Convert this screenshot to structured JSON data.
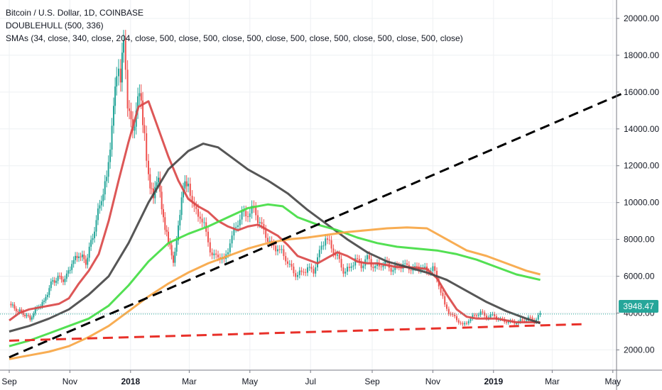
{
  "legend": {
    "title": "Bitcoin / U.S. Dollar, 1D, COINBASE",
    "indicator1": "DOUBLEHULL (500, 336)",
    "indicator2": "SMAs (34, close, 340, close, 204, close, 500, close, 500, close, 500, close, 500, close, 500, close, 500, close, 500, close)"
  },
  "last_price_label": "3948.47",
  "colors": {
    "up_candle": "#26a69a",
    "down_candle": "#ef5350",
    "sma_red": "#d94545",
    "sma_dark": "#444444",
    "sma_green": "#40dd40",
    "sma_orange": "#f7a440",
    "trend_black": "#000000",
    "trend_red": "#e8312a",
    "price_tag": "#26a69a"
  },
  "chart_data": {
    "type": "line",
    "x_range_days": [
      0,
      620
    ],
    "ylim": [
      900,
      21000
    ],
    "y_ticks": [
      2000,
      4000,
      6000,
      8000,
      10000,
      12000,
      14000,
      16000,
      18000,
      20000
    ],
    "y_tick_labels": [
      "2000.00",
      "4000.00",
      "6000.00",
      "8000.00",
      "10000.00",
      "12000.00",
      "14000.00",
      "16000.00",
      "18000.00",
      "20000.00"
    ],
    "x_ticks": [
      {
        "label": "Sep",
        "day": 0,
        "bold": false
      },
      {
        "label": "Nov",
        "day": 61,
        "bold": false
      },
      {
        "label": "2018",
        "day": 122,
        "bold": true
      },
      {
        "label": "Mar",
        "day": 181,
        "bold": false
      },
      {
        "label": "May",
        "day": 242,
        "bold": false
      },
      {
        "label": "Jul",
        "day": 303,
        "bold": false
      },
      {
        "label": "Sep",
        "day": 365,
        "bold": false
      },
      {
        "label": "Nov",
        "day": 426,
        "bold": false
      },
      {
        "label": "2019",
        "day": 487,
        "bold": true
      },
      {
        "label": "Mar",
        "day": 546,
        "bold": false
      },
      {
        "label": "May",
        "day": 607,
        "bold": false
      }
    ],
    "price": [
      [
        0,
        4500
      ],
      [
        7,
        4200
      ],
      [
        14,
        4000
      ],
      [
        21,
        3700
      ],
      [
        28,
        4300
      ],
      [
        35,
        4600
      ],
      [
        42,
        5600
      ],
      [
        49,
        5900
      ],
      [
        56,
        5800
      ],
      [
        63,
        6700
      ],
      [
        70,
        7200
      ],
      [
        77,
        6800
      ],
      [
        84,
        8200
      ],
      [
        91,
        9900
      ],
      [
        98,
        11300
      ],
      [
        105,
        15000
      ],
      [
        108,
        17200
      ],
      [
        112,
        16500
      ],
      [
        115,
        19000
      ],
      [
        119,
        14800
      ],
      [
        126,
        14100
      ],
      [
        131,
        16200
      ],
      [
        136,
        13800
      ],
      [
        140,
        11400
      ],
      [
        145,
        10100
      ],
      [
        150,
        11600
      ],
      [
        155,
        9000
      ],
      [
        160,
        7800
      ],
      [
        165,
        6900
      ],
      [
        170,
        8600
      ],
      [
        175,
        10800
      ],
      [
        180,
        11200
      ],
      [
        186,
        9500
      ],
      [
        192,
        9300
      ],
      [
        198,
        8400
      ],
      [
        204,
        7000
      ],
      [
        210,
        7200
      ],
      [
        216,
        6800
      ],
      [
        222,
        7800
      ],
      [
        228,
        8800
      ],
      [
        234,
        9300
      ],
      [
        240,
        9400
      ],
      [
        246,
        9700
      ],
      [
        252,
        8800
      ],
      [
        258,
        8300
      ],
      [
        264,
        7600
      ],
      [
        270,
        7500
      ],
      [
        276,
        7200
      ],
      [
        282,
        6500
      ],
      [
        288,
        6100
      ],
      [
        294,
        6200
      ],
      [
        300,
        6400
      ],
      [
        306,
        6300
      ],
      [
        312,
        7300
      ],
      [
        318,
        8100
      ],
      [
        324,
        7600
      ],
      [
        330,
        7000
      ],
      [
        336,
        6300
      ],
      [
        342,
        6400
      ],
      [
        348,
        6900
      ],
      [
        354,
        6600
      ],
      [
        360,
        7000
      ],
      [
        366,
        6500
      ],
      [
        372,
        6600
      ],
      [
        378,
        6700
      ],
      [
        384,
        6400
      ],
      [
        390,
        6500
      ],
      [
        396,
        6600
      ],
      [
        402,
        6500
      ],
      [
        408,
        6400
      ],
      [
        414,
        6500
      ],
      [
        420,
        6300
      ],
      [
        426,
        6400
      ],
      [
        432,
        5600
      ],
      [
        438,
        4400
      ],
      [
        444,
        3900
      ],
      [
        450,
        3700
      ],
      [
        456,
        3300
      ],
      [
        462,
        3600
      ],
      [
        468,
        3900
      ],
      [
        474,
        4000
      ],
      [
        480,
        3800
      ],
      [
        486,
        3900
      ],
      [
        492,
        3650
      ],
      [
        498,
        3600
      ],
      [
        504,
        3500
      ],
      [
        510,
        3500
      ],
      [
        516,
        3600
      ],
      [
        522,
        3700
      ],
      [
        528,
        3600
      ],
      [
        534,
        3950
      ]
    ],
    "series": [
      {
        "key": "sma_red",
        "values": [
          [
            0,
            3600
          ],
          [
            10,
            4000
          ],
          [
            20,
            4200
          ],
          [
            30,
            4300
          ],
          [
            40,
            4400
          ],
          [
            50,
            4500
          ],
          [
            60,
            4800
          ],
          [
            70,
            5600
          ],
          [
            80,
            6300
          ],
          [
            90,
            7200
          ],
          [
            100,
            9000
          ],
          [
            110,
            11200
          ],
          [
            120,
            13300
          ],
          [
            130,
            15200
          ],
          [
            140,
            15500
          ],
          [
            150,
            14000
          ],
          [
            160,
            12500
          ],
          [
            170,
            11200
          ],
          [
            180,
            10200
          ],
          [
            190,
            9800
          ],
          [
            200,
            9500
          ],
          [
            210,
            9000
          ],
          [
            220,
            8700
          ],
          [
            230,
            8500
          ],
          [
            240,
            8700
          ],
          [
            250,
            8800
          ],
          [
            260,
            8500
          ],
          [
            270,
            8200
          ],
          [
            280,
            7700
          ],
          [
            290,
            7100
          ],
          [
            300,
            6900
          ],
          [
            310,
            6700
          ],
          [
            320,
            7000
          ],
          [
            330,
            7300
          ],
          [
            340,
            7100
          ],
          [
            350,
            6800
          ],
          [
            360,
            6700
          ],
          [
            370,
            6700
          ],
          [
            380,
            6600
          ],
          [
            390,
            6500
          ],
          [
            400,
            6500
          ],
          [
            410,
            6450
          ],
          [
            420,
            6400
          ],
          [
            430,
            5900
          ],
          [
            440,
            5000
          ],
          [
            450,
            4200
          ],
          [
            460,
            3800
          ],
          [
            470,
            3700
          ],
          [
            480,
            3700
          ],
          [
            490,
            3700
          ],
          [
            500,
            3600
          ],
          [
            510,
            3500
          ],
          [
            520,
            3500
          ],
          [
            534,
            3500
          ]
        ]
      },
      {
        "key": "sma_dark",
        "values": [
          [
            0,
            3000
          ],
          [
            20,
            3300
          ],
          [
            40,
            3700
          ],
          [
            60,
            4200
          ],
          [
            80,
            5000
          ],
          [
            100,
            6000
          ],
          [
            120,
            7800
          ],
          [
            140,
            10000
          ],
          [
            160,
            11800
          ],
          [
            180,
            12800
          ],
          [
            195,
            13200
          ],
          [
            210,
            13000
          ],
          [
            225,
            12400
          ],
          [
            240,
            11800
          ],
          [
            260,
            11200
          ],
          [
            280,
            10500
          ],
          [
            300,
            9600
          ],
          [
            320,
            8800
          ],
          [
            340,
            8000
          ],
          [
            360,
            7300
          ],
          [
            380,
            6800
          ],
          [
            400,
            6500
          ],
          [
            420,
            6200
          ],
          [
            440,
            5800
          ],
          [
            460,
            5200
          ],
          [
            480,
            4600
          ],
          [
            500,
            4100
          ],
          [
            520,
            3700
          ],
          [
            534,
            3450
          ]
        ]
      },
      {
        "key": "sma_green",
        "values": [
          [
            0,
            2200
          ],
          [
            20,
            2500
          ],
          [
            40,
            2900
          ],
          [
            60,
            3300
          ],
          [
            80,
            3700
          ],
          [
            100,
            4400
          ],
          [
            120,
            5500
          ],
          [
            140,
            6800
          ],
          [
            160,
            7800
          ],
          [
            180,
            8300
          ],
          [
            200,
            8700
          ],
          [
            220,
            9200
          ],
          [
            240,
            9700
          ],
          [
            260,
            9900
          ],
          [
            275,
            9800
          ],
          [
            290,
            9200
          ],
          [
            310,
            8800
          ],
          [
            330,
            8500
          ],
          [
            350,
            8100
          ],
          [
            370,
            7800
          ],
          [
            390,
            7600
          ],
          [
            410,
            7500
          ],
          [
            430,
            7400
          ],
          [
            450,
            7200
          ],
          [
            470,
            6900
          ],
          [
            490,
            6500
          ],
          [
            510,
            6100
          ],
          [
            534,
            5800
          ]
        ]
      },
      {
        "key": "sma_orange",
        "values": [
          [
            0,
            1500
          ],
          [
            20,
            1700
          ],
          [
            40,
            1900
          ],
          [
            60,
            2200
          ],
          [
            80,
            2700
          ],
          [
            100,
            3300
          ],
          [
            120,
            4100
          ],
          [
            140,
            4900
          ],
          [
            160,
            5600
          ],
          [
            180,
            6200
          ],
          [
            200,
            6700
          ],
          [
            220,
            7100
          ],
          [
            240,
            7500
          ],
          [
            260,
            7800
          ],
          [
            280,
            8000
          ],
          [
            300,
            8100
          ],
          [
            320,
            8250
          ],
          [
            340,
            8400
          ],
          [
            360,
            8500
          ],
          [
            380,
            8600
          ],
          [
            400,
            8650
          ],
          [
            420,
            8600
          ],
          [
            440,
            8000
          ],
          [
            460,
            7400
          ],
          [
            480,
            7100
          ],
          [
            500,
            6700
          ],
          [
            520,
            6300
          ],
          [
            534,
            6100
          ]
        ]
      }
    ],
    "trendlines": [
      {
        "key": "trend_black",
        "from": [
          0,
          1600
        ],
        "to": [
          620,
          16000
        ],
        "dashed": true
      },
      {
        "key": "trend_red",
        "from": [
          0,
          2500
        ],
        "to": [
          580,
          3400
        ],
        "dashed": true
      }
    ],
    "last_price": 3948.47
  }
}
